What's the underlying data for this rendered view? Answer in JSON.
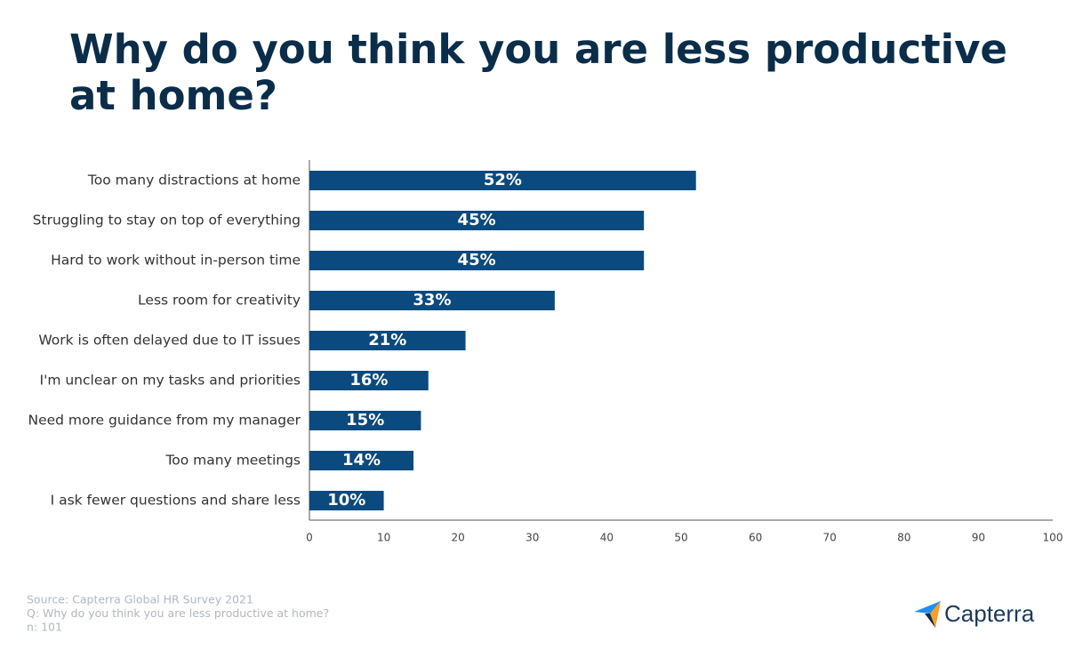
{
  "chart_data": {
    "type": "barh",
    "title": "Why do you think you are less productive at home?",
    "categories": [
      "Too many distractions at home",
      "Struggling to stay on top of everything",
      "Hard to work without in-person time",
      "Less room for creativity",
      "Work is often delayed due to IT issues",
      "I'm unclear on my tasks and priorities",
      "Need more guidance from my manager",
      "Too many meetings",
      "I ask fewer questions and share less"
    ],
    "values": [
      52,
      45,
      45,
      33,
      21,
      16,
      15,
      14,
      10
    ],
    "value_labels": [
      "52%",
      "45%",
      "45%",
      "33%",
      "21%",
      "16%",
      "15%",
      "14%",
      "10%"
    ],
    "color": "#0b4a7e",
    "xlim": [
      0,
      100
    ],
    "xticks": [
      0,
      10,
      20,
      30,
      40,
      50,
      60,
      70,
      80,
      90,
      100
    ],
    "grid": false,
    "notes": [
      "Source: Capterra Global HR Survey 2021",
      "Q: Why do you think you are less productive at home?",
      "n: 101"
    ],
    "logo": "Capterra"
  }
}
